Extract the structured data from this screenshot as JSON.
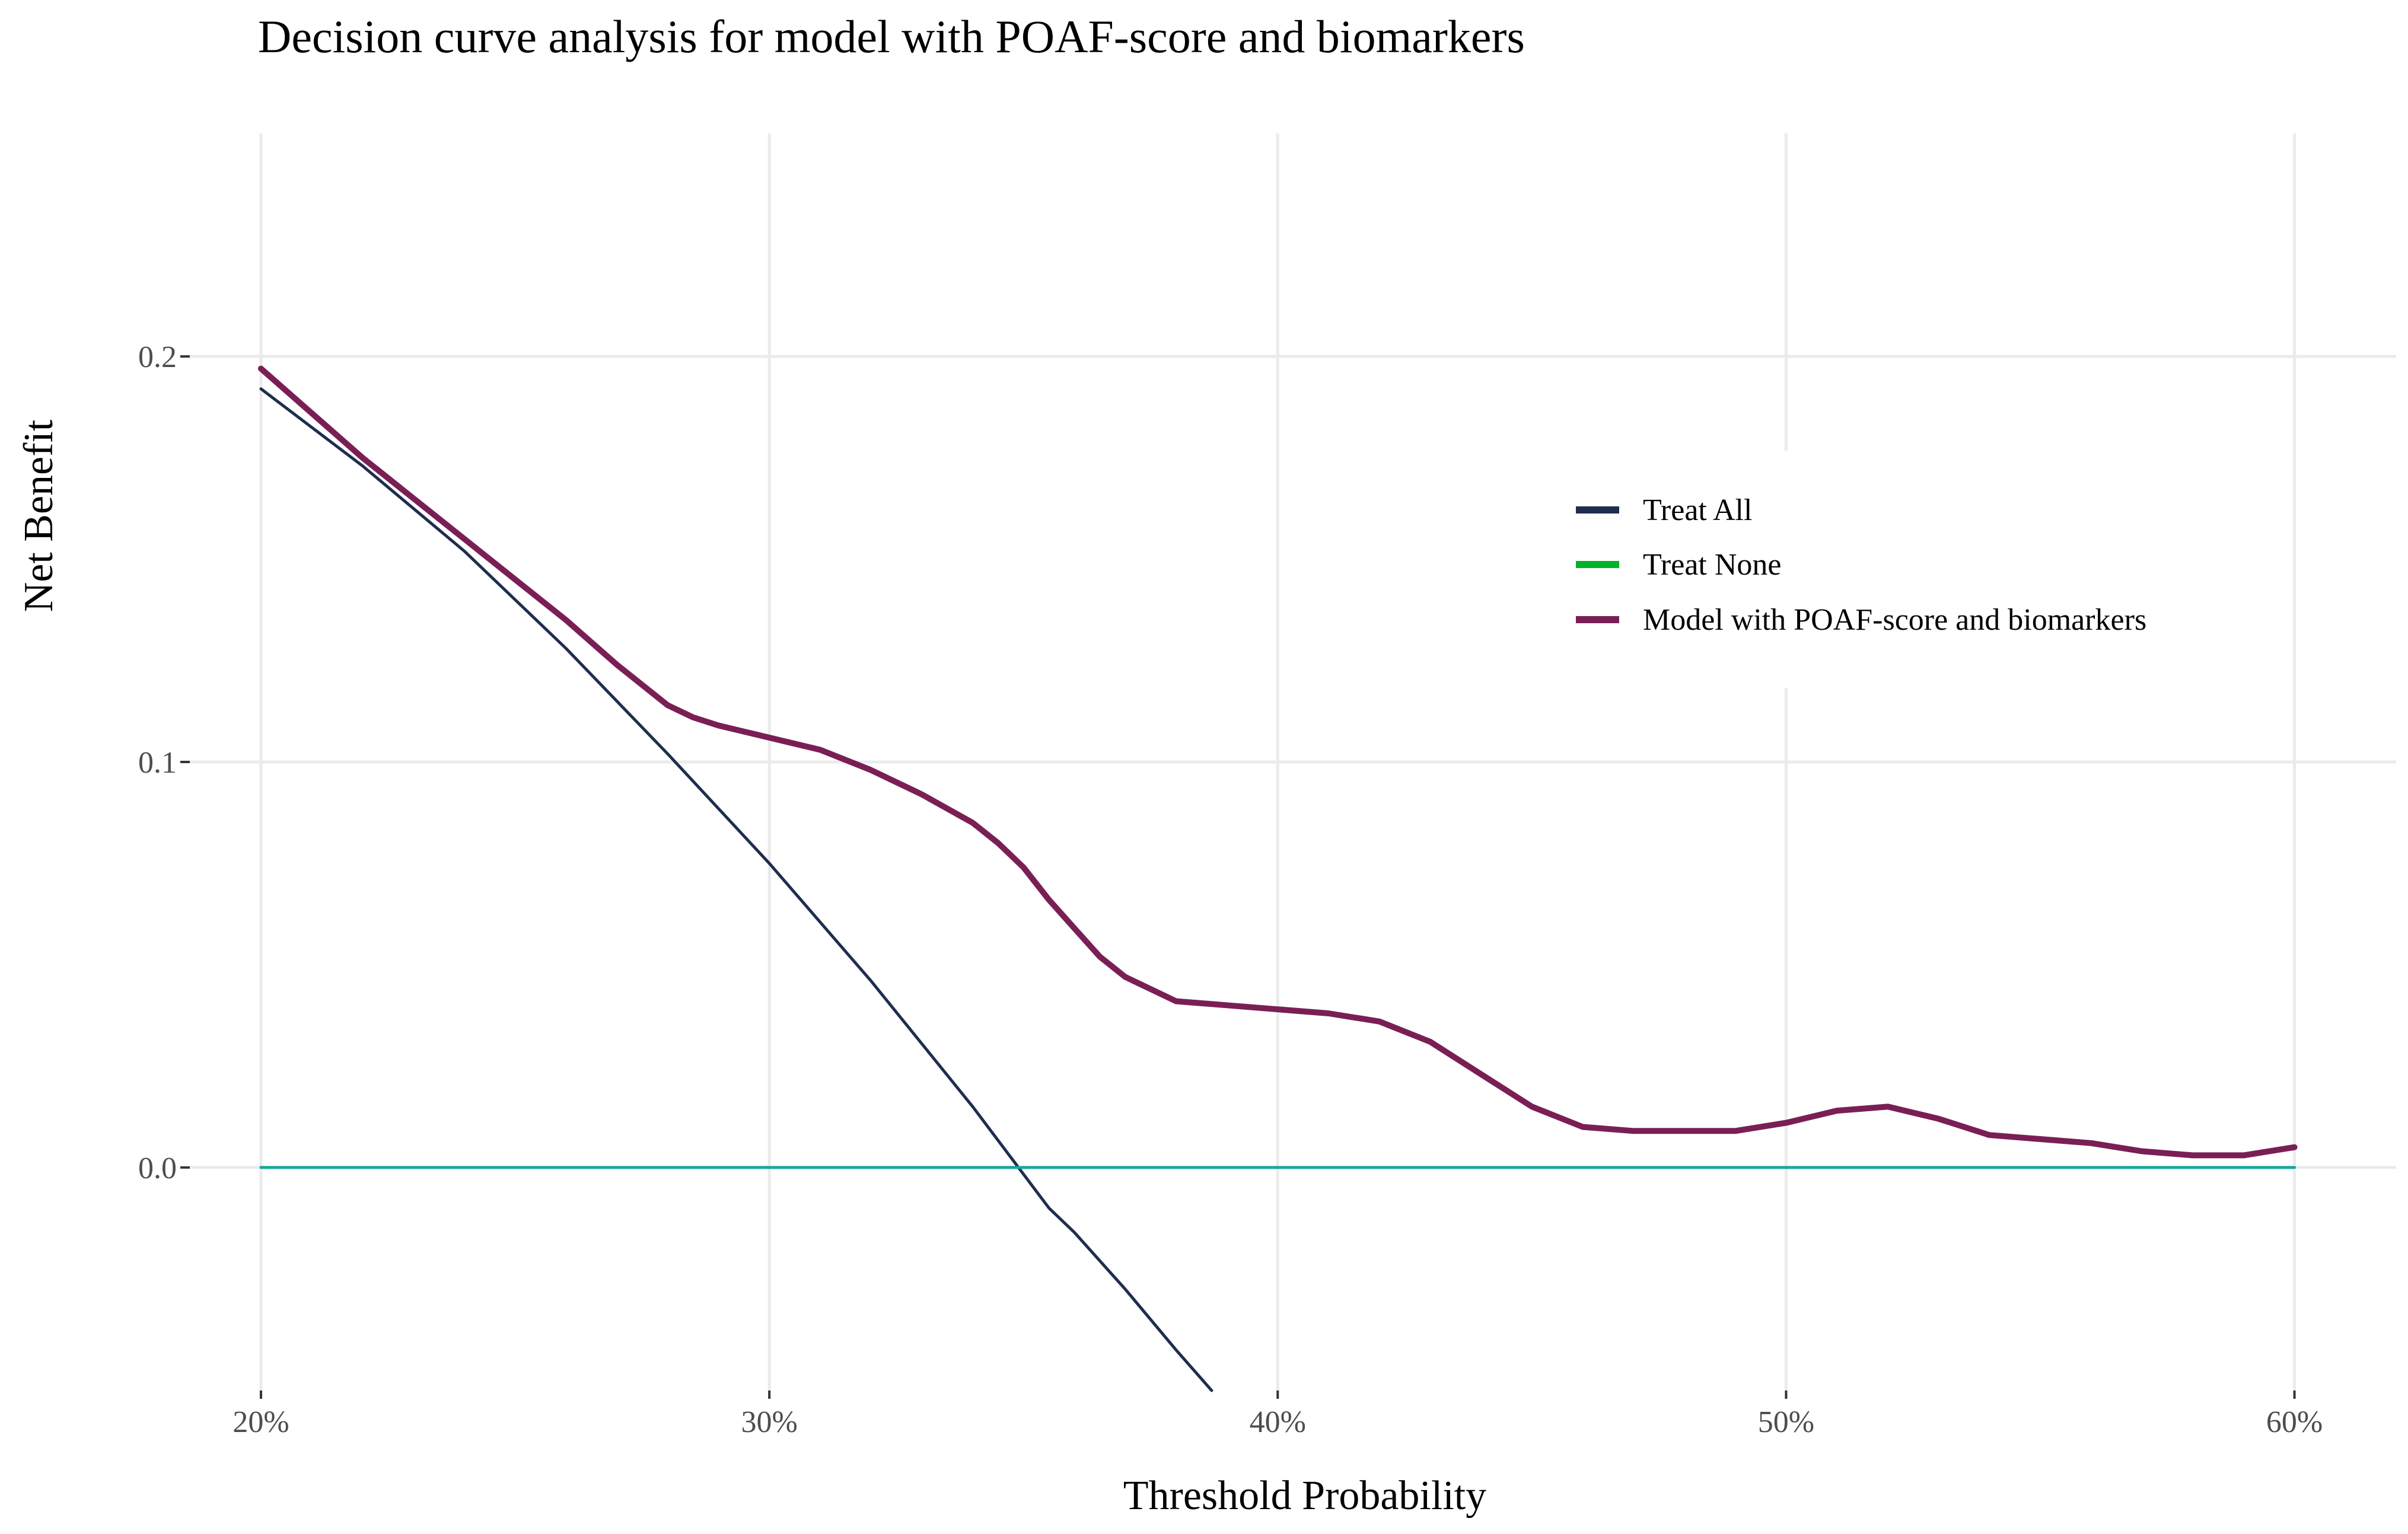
{
  "chart_data": {
    "type": "line",
    "title": "Decision curve analysis for model with POAF-score and biomarkers",
    "xlabel": "Threshold Probability",
    "ylabel": "Net Benefit",
    "xlim": [
      0.186,
      0.62
    ],
    "ylim": [
      -0.055,
      0.255
    ],
    "x_ticks": [
      0.2,
      0.3,
      0.4,
      0.5,
      0.6
    ],
    "x_tick_labels": [
      "20%",
      "30%",
      "40%",
      "50%",
      "60%"
    ],
    "y_ticks": [
      0.0,
      0.1,
      0.2
    ],
    "y_tick_labels": [
      "0.0",
      "0.1",
      "0.2"
    ],
    "grid": true,
    "legend_position": "right",
    "series": [
      {
        "name": "Treat All",
        "color": "#1f2d4f",
        "x": [
          0.2,
          0.22,
          0.24,
          0.26,
          0.28,
          0.3,
          0.32,
          0.34,
          0.355,
          0.36,
          0.37,
          0.38,
          0.387
        ],
        "y": [
          0.192,
          0.173,
          0.152,
          0.128,
          0.102,
          0.075,
          0.046,
          0.015,
          -0.01,
          -0.016,
          -0.03,
          -0.045,
          -0.055
        ]
      },
      {
        "name": "Treat None",
        "color": "#00b32a",
        "x": [
          0.2,
          0.6
        ],
        "y": [
          0.0,
          0.0
        ]
      },
      {
        "name": "Model with POAF-score and biomarkers",
        "color": "#7a1f55",
        "x": [
          0.2,
          0.21,
          0.22,
          0.23,
          0.24,
          0.25,
          0.26,
          0.27,
          0.28,
          0.285,
          0.29,
          0.3,
          0.31,
          0.32,
          0.33,
          0.34,
          0.345,
          0.35,
          0.355,
          0.36,
          0.365,
          0.37,
          0.375,
          0.38,
          0.39,
          0.4,
          0.41,
          0.42,
          0.43,
          0.44,
          0.45,
          0.46,
          0.47,
          0.48,
          0.49,
          0.5,
          0.51,
          0.52,
          0.53,
          0.54,
          0.55,
          0.56,
          0.57,
          0.58,
          0.59,
          0.6
        ],
        "y": [
          0.197,
          0.186,
          0.175,
          0.165,
          0.155,
          0.145,
          0.135,
          0.124,
          0.114,
          0.111,
          0.109,
          0.106,
          0.103,
          0.098,
          0.092,
          0.085,
          0.08,
          0.074,
          0.066,
          0.059,
          0.052,
          0.047,
          0.044,
          0.041,
          0.04,
          0.039,
          0.038,
          0.036,
          0.031,
          0.023,
          0.015,
          0.01,
          0.009,
          0.009,
          0.009,
          0.011,
          0.014,
          0.015,
          0.012,
          0.008,
          0.007,
          0.006,
          0.004,
          0.003,
          0.003,
          0.005
        ]
      }
    ]
  }
}
